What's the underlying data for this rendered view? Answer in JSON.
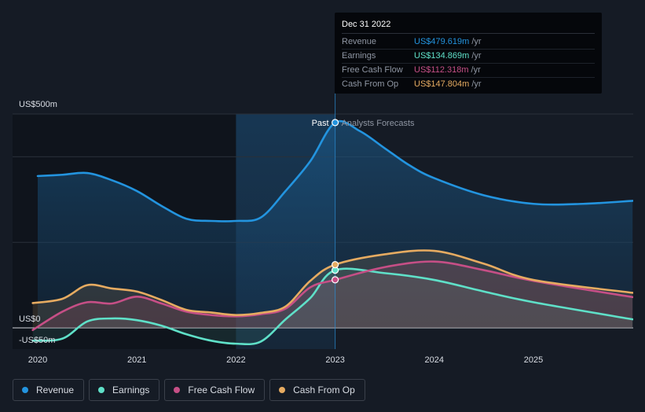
{
  "chart_data": {
    "type": "area",
    "y_unit_label_top": "US$500m",
    "y_zero_label": "US$0",
    "y_neg_label": "-US$50m",
    "ylim": [
      -50,
      500
    ],
    "x_ticks": [
      "2020",
      "2021",
      "2022",
      "2023",
      "2024",
      "2025"
    ],
    "divider_labels": {
      "past": "Past",
      "forecast": "Analysts Forecasts"
    },
    "divider_x": 2023.0,
    "highlight_range": [
      2022.0,
      2023.0
    ],
    "series": [
      {
        "name": "Revenue",
        "color": "#2394df",
        "points": [
          [
            2020.0,
            355
          ],
          [
            2020.25,
            358
          ],
          [
            2020.5,
            362
          ],
          [
            2020.75,
            345
          ],
          [
            2021.0,
            320
          ],
          [
            2021.25,
            285
          ],
          [
            2021.5,
            255
          ],
          [
            2021.75,
            250
          ],
          [
            2022.0,
            250
          ],
          [
            2022.25,
            258
          ],
          [
            2022.5,
            320
          ],
          [
            2022.75,
            390
          ],
          [
            2023.0,
            480
          ],
          [
            2023.25,
            460
          ],
          [
            2023.5,
            420
          ],
          [
            2023.75,
            380
          ],
          [
            2024.0,
            350
          ],
          [
            2024.5,
            310
          ],
          [
            2025.0,
            290
          ],
          [
            2025.5,
            290
          ],
          [
            2026.0,
            297
          ]
        ]
      },
      {
        "name": "Earnings",
        "color": "#5fe0c8",
        "points": [
          [
            2019.95,
            -30
          ],
          [
            2020.25,
            -25
          ],
          [
            2020.5,
            15
          ],
          [
            2020.75,
            22
          ],
          [
            2021.0,
            18
          ],
          [
            2021.25,
            5
          ],
          [
            2021.5,
            -15
          ],
          [
            2021.75,
            -30
          ],
          [
            2022.0,
            -37
          ],
          [
            2022.25,
            -32
          ],
          [
            2022.5,
            20
          ],
          [
            2022.75,
            70
          ],
          [
            2023.0,
            134.869
          ],
          [
            2023.5,
            128
          ],
          [
            2024.0,
            112
          ],
          [
            2024.5,
            85
          ],
          [
            2025.0,
            60
          ],
          [
            2026.0,
            20
          ]
        ]
      },
      {
        "name": "Free Cash Flow",
        "color": "#c64f86",
        "points": [
          [
            2019.95,
            -5
          ],
          [
            2020.25,
            38
          ],
          [
            2020.5,
            60
          ],
          [
            2020.75,
            57
          ],
          [
            2021.0,
            73
          ],
          [
            2021.25,
            57
          ],
          [
            2021.5,
            38
          ],
          [
            2021.75,
            30
          ],
          [
            2022.0,
            27
          ],
          [
            2022.25,
            32
          ],
          [
            2022.5,
            45
          ],
          [
            2022.75,
            95
          ],
          [
            2023.0,
            112.318
          ],
          [
            2023.5,
            142
          ],
          [
            2024.0,
            155
          ],
          [
            2024.5,
            135
          ],
          [
            2025.0,
            110
          ],
          [
            2026.0,
            72
          ]
        ]
      },
      {
        "name": "Cash From Op",
        "color": "#e6ab61",
        "points": [
          [
            2019.95,
            58
          ],
          [
            2020.25,
            68
          ],
          [
            2020.5,
            100
          ],
          [
            2020.75,
            92
          ],
          [
            2021.0,
            85
          ],
          [
            2021.25,
            65
          ],
          [
            2021.5,
            42
          ],
          [
            2021.75,
            36
          ],
          [
            2022.0,
            30
          ],
          [
            2022.25,
            35
          ],
          [
            2022.5,
            50
          ],
          [
            2022.75,
            110
          ],
          [
            2023.0,
            147.804
          ],
          [
            2023.5,
            172
          ],
          [
            2024.0,
            180
          ],
          [
            2024.5,
            150
          ],
          [
            2025.0,
            112
          ],
          [
            2026.0,
            82
          ]
        ]
      }
    ]
  },
  "tooltip": {
    "date": "Dec 31 2022",
    "unit": "/yr",
    "rows": [
      {
        "label": "Revenue",
        "value": "US$479.619m",
        "color": "#2394df"
      },
      {
        "label": "Earnings",
        "value": "US$134.869m",
        "color": "#5fe0c8"
      },
      {
        "label": "Free Cash Flow",
        "value": "US$112.318m",
        "color": "#c64f86"
      },
      {
        "label": "Cash From Op",
        "value": "US$147.804m",
        "color": "#e6ab61"
      }
    ]
  },
  "legend": [
    {
      "label": "Revenue",
      "color": "#2394df"
    },
    {
      "label": "Earnings",
      "color": "#5fe0c8"
    },
    {
      "label": "Free Cash Flow",
      "color": "#c64f86"
    },
    {
      "label": "Cash From Op",
      "color": "#e6ab61"
    }
  ]
}
